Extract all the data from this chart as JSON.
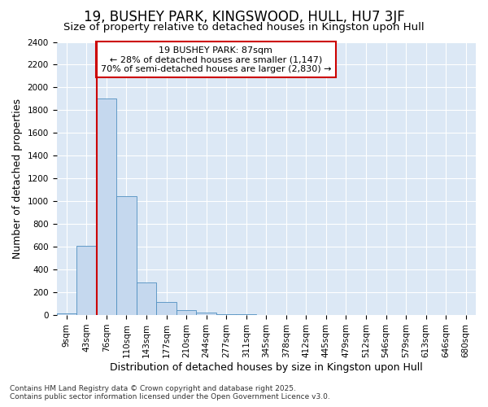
{
  "title": "19, BUSHEY PARK, KINGSWOOD, HULL, HU7 3JF",
  "subtitle": "Size of property relative to detached houses in Kingston upon Hull",
  "xlabel": "Distribution of detached houses by size in Kingston upon Hull",
  "ylabel": "Number of detached properties",
  "categories": [
    "9sqm",
    "43sqm",
    "76sqm",
    "110sqm",
    "143sqm",
    "177sqm",
    "210sqm",
    "244sqm",
    "277sqm",
    "311sqm",
    "345sqm",
    "378sqm",
    "412sqm",
    "445sqm",
    "479sqm",
    "512sqm",
    "546sqm",
    "579sqm",
    "613sqm",
    "646sqm",
    "680sqm"
  ],
  "values": [
    15,
    605,
    1905,
    1045,
    290,
    115,
    45,
    20,
    10,
    5,
    0,
    0,
    0,
    0,
    0,
    0,
    0,
    0,
    0,
    0,
    0
  ],
  "bar_color": "#c5d8ee",
  "bar_edgecolor": "#4f8fc0",
  "vline_color": "#cc0000",
  "vline_bar_index": 2,
  "ylim": [
    0,
    2400
  ],
  "yticks": [
    0,
    200,
    400,
    600,
    800,
    1000,
    1200,
    1400,
    1600,
    1800,
    2000,
    2200,
    2400
  ],
  "annotation_title": "19 BUSHEY PARK: 87sqm",
  "annotation_line1": "← 28% of detached houses are smaller (1,147)",
  "annotation_line2": "70% of semi-detached houses are larger (2,830) →",
  "annotation_box_edgecolor": "#cc0000",
  "footnote1": "Contains HM Land Registry data © Crown copyright and database right 2025.",
  "footnote2": "Contains public sector information licensed under the Open Government Licence v3.0.",
  "fig_bg_color": "#ffffff",
  "plot_bg_color": "#dce8f5",
  "grid_color": "#ffffff",
  "title_fontsize": 12,
  "subtitle_fontsize": 9.5,
  "tick_fontsize": 7.5,
  "ylabel_fontsize": 9,
  "xlabel_fontsize": 9,
  "annot_fontsize": 8,
  "footnote_fontsize": 6.5
}
